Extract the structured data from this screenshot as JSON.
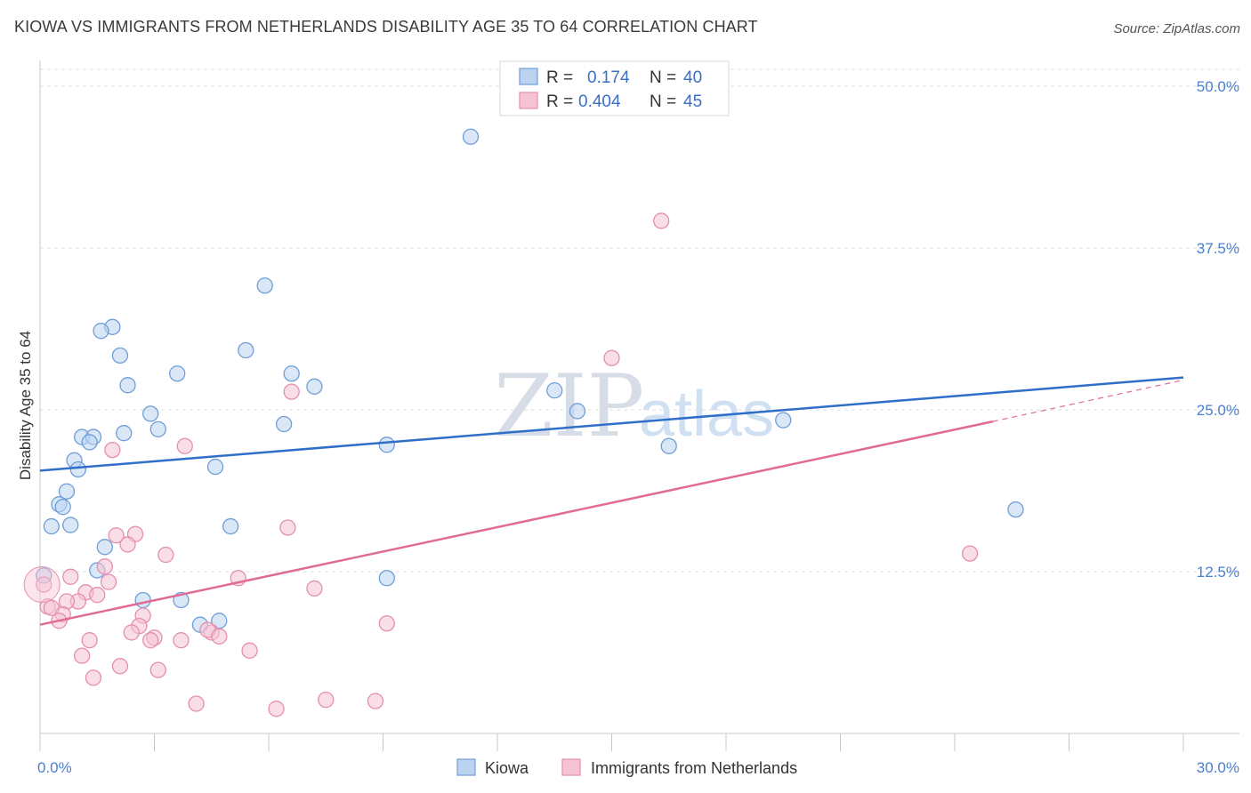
{
  "header": {
    "title": "KIOWA VS IMMIGRANTS FROM NETHERLANDS DISABILITY AGE 35 TO 64 CORRELATION CHART",
    "source": "Source: ZipAtlas.com"
  },
  "watermark": {
    "zip": "ZIP",
    "atlas": "atlas"
  },
  "chart_data": {
    "type": "scatter",
    "title": "KIOWA VS IMMIGRANTS FROM NETHERLANDS DISABILITY AGE 35 TO 64 CORRELATION CHART",
    "xlabel": "",
    "ylabel": "Disability Age 35 to 64",
    "xlim": [
      0,
      30
    ],
    "ylim": [
      0,
      50
    ],
    "x_tick_labels": [
      "0.0%",
      "30.0%"
    ],
    "y_ticks": [
      12.5,
      25.0,
      37.5,
      50.0
    ],
    "y_tick_labels": [
      "12.5%",
      "25.0%",
      "37.5%",
      "50.0%"
    ],
    "grid": "horizontal dashed",
    "legend_placement": "top-center",
    "series": [
      {
        "name": "Kiowa",
        "color": "#6f9ed8",
        "fill": "#bcd3f0",
        "R": "0.174",
        "N": "40",
        "trend": {
          "x": [
            0,
            30
          ],
          "y": [
            20.3,
            27.5
          ],
          "color": "#2f6fc9"
        },
        "points": [
          [
            11.3,
            46.1
          ],
          [
            5.9,
            34.6
          ],
          [
            1.9,
            31.4
          ],
          [
            1.6,
            31.1
          ],
          [
            2.1,
            29.2
          ],
          [
            5.4,
            29.6
          ],
          [
            3.6,
            27.8
          ],
          [
            6.6,
            27.8
          ],
          [
            2.3,
            26.9
          ],
          [
            7.2,
            26.8
          ],
          [
            13.5,
            26.5
          ],
          [
            2.9,
            24.7
          ],
          [
            14.1,
            24.9
          ],
          [
            19.5,
            24.2
          ],
          [
            6.4,
            23.9
          ],
          [
            3.1,
            23.5
          ],
          [
            2.2,
            23.2
          ],
          [
            1.1,
            22.9
          ],
          [
            1.4,
            22.9
          ],
          [
            1.3,
            22.5
          ],
          [
            9.1,
            22.3
          ],
          [
            16.5,
            22.2
          ],
          [
            0.9,
            21.1
          ],
          [
            1.0,
            20.4
          ],
          [
            4.6,
            20.6
          ],
          [
            0.7,
            18.7
          ],
          [
            0.5,
            17.7
          ],
          [
            0.6,
            17.5
          ],
          [
            25.6,
            17.3
          ],
          [
            0.3,
            16.0
          ],
          [
            0.8,
            16.1
          ],
          [
            5.0,
            16.0
          ],
          [
            1.7,
            14.4
          ],
          [
            1.5,
            12.6
          ],
          [
            0.1,
            12.2
          ],
          [
            9.1,
            12.0
          ],
          [
            2.7,
            10.3
          ],
          [
            3.7,
            10.3
          ],
          [
            4.2,
            8.4
          ],
          [
            4.7,
            8.7
          ]
        ]
      },
      {
        "name": "Immigrants from Netherlands",
        "color": "#e48fae",
        "fill": "#f6c3d4",
        "R": "0.404",
        "N": "45",
        "trend": {
          "x": [
            0,
            25
          ],
          "y": [
            8.4,
            24.1
          ],
          "color": "#e06b96",
          "dash_to": [
            30,
            27.3
          ]
        },
        "points": [
          [
            16.3,
            39.6
          ],
          [
            15.0,
            29.0
          ],
          [
            6.6,
            26.4
          ],
          [
            3.8,
            22.2
          ],
          [
            1.9,
            21.9
          ],
          [
            6.5,
            15.9
          ],
          [
            2.0,
            15.3
          ],
          [
            2.5,
            15.4
          ],
          [
            2.3,
            14.6
          ],
          [
            3.3,
            13.8
          ],
          [
            24.4,
            13.9
          ],
          [
            1.7,
            12.9
          ],
          [
            0.8,
            12.1
          ],
          [
            5.2,
            12.0
          ],
          [
            0.1,
            11.5
          ],
          [
            1.8,
            11.7
          ],
          [
            7.2,
            11.2
          ],
          [
            1.2,
            10.9
          ],
          [
            1.5,
            10.7
          ],
          [
            1.0,
            10.2
          ],
          [
            0.7,
            10.2
          ],
          [
            0.2,
            9.8
          ],
          [
            0.3,
            9.7
          ],
          [
            0.6,
            9.2
          ],
          [
            2.7,
            9.1
          ],
          [
            0.5,
            8.7
          ],
          [
            9.1,
            8.5
          ],
          [
            2.6,
            8.3
          ],
          [
            2.4,
            7.8
          ],
          [
            4.5,
            7.8
          ],
          [
            4.4,
            8.0
          ],
          [
            3.0,
            7.4
          ],
          [
            2.9,
            7.2
          ],
          [
            1.3,
            7.2
          ],
          [
            3.7,
            7.2
          ],
          [
            4.7,
            7.5
          ],
          [
            5.5,
            6.4
          ],
          [
            1.1,
            6.0
          ],
          [
            2.1,
            5.2
          ],
          [
            3.1,
            4.9
          ],
          [
            1.4,
            4.3
          ],
          [
            4.1,
            2.3
          ],
          [
            7.5,
            2.6
          ],
          [
            8.8,
            2.5
          ],
          [
            6.2,
            1.9
          ]
        ]
      }
    ]
  },
  "legend": {
    "r_label": "R =",
    "n_label": "N =",
    "kiowa_r": "0.174",
    "kiowa_n": "40",
    "neth_r": "0.404",
    "neth_n": "45"
  },
  "bottom_legend": {
    "kiowa": "Kiowa",
    "netherlands": "Immigrants from Netherlands"
  }
}
